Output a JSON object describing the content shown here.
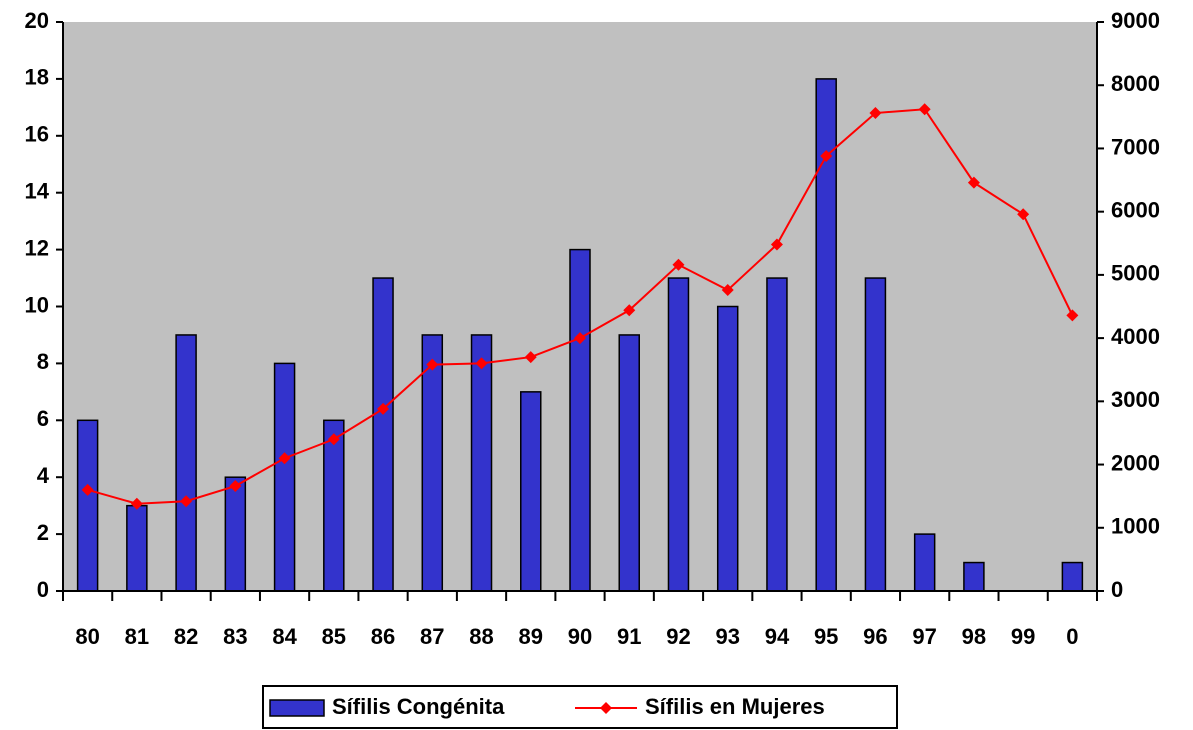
{
  "chart_data": {
    "type": "bar_line",
    "categories": [
      "80",
      "81",
      "82",
      "83",
      "84",
      "85",
      "86",
      "87",
      "88",
      "89",
      "90",
      "91",
      "92",
      "93",
      "94",
      "95",
      "96",
      "97",
      "98",
      "99",
      "0"
    ],
    "series": [
      {
        "name": "Sífilis Congénita",
        "type": "bar",
        "color": "#3333cc",
        "axis": "y",
        "values": [
          6,
          3,
          9,
          4,
          8,
          6,
          11,
          9,
          9,
          7,
          12,
          9,
          11,
          10,
          11,
          18,
          11,
          2,
          1,
          0,
          1
        ]
      },
      {
        "name": "Sífilis en Mujeres",
        "type": "line",
        "color": "#ff0000",
        "axis": "y2",
        "values": [
          1600,
          1380,
          1420,
          1660,
          2100,
          2400,
          2880,
          3580,
          3600,
          3700,
          4000,
          4440,
          5160,
          4760,
          5480,
          6880,
          7560,
          7620,
          6460,
          5960,
          4360
        ]
      }
    ],
    "ylim": [
      0,
      20
    ],
    "yticks": [
      0,
      2,
      4,
      6,
      8,
      10,
      12,
      14,
      16,
      18,
      20
    ],
    "y2lim": [
      0,
      9000
    ],
    "y2ticks": [
      0,
      1000,
      2000,
      3000,
      4000,
      5000,
      6000,
      7000,
      8000,
      9000
    ],
    "legend": "bottom"
  }
}
